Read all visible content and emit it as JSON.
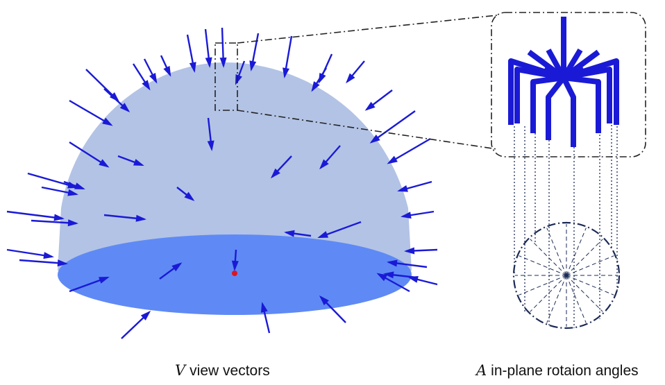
{
  "captions": {
    "left_symbol": "V",
    "left_text": "view vectors",
    "right_symbol": "A",
    "right_text": "in-plane rotaion angles"
  },
  "colors": {
    "dome": "#b3c3e5",
    "base": "#5f8af5",
    "arrow": "#1a1ad6",
    "center_point": "#e0141e",
    "frame": "#222222",
    "circle": "#1b2a55"
  },
  "icons": {
    "arrow_head": "circle-head-arrow",
    "zoom_box": "dashdot-rounded-frame"
  }
}
